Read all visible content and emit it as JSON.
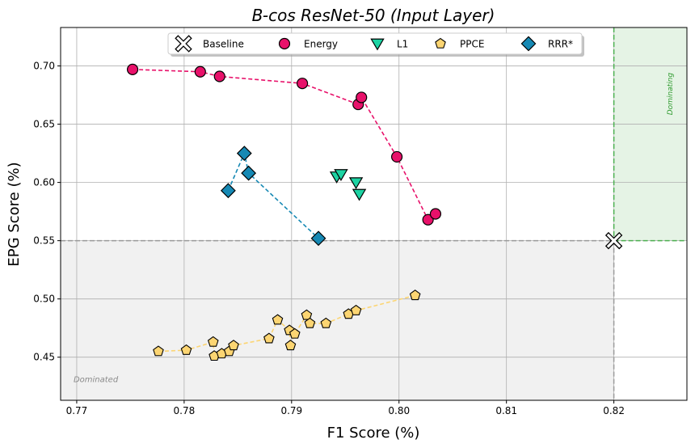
{
  "chart_data": {
    "type": "scatter",
    "title": "B-cos ResNet-50 (Input Layer)",
    "xlabel": "F1 Score (%)",
    "ylabel": "EPG Score (%)",
    "xlim": [
      0.7685,
      0.8268
    ],
    "ylim": [
      0.413,
      0.733
    ],
    "xticks": [
      0.77,
      0.78,
      0.79,
      0.8,
      0.81,
      0.82
    ],
    "xtick_labels": [
      "0.77",
      "0.78",
      "0.79",
      "0.80",
      "0.81",
      "0.82"
    ],
    "yticks": [
      0.45,
      0.5,
      0.55,
      0.6,
      0.65,
      0.7
    ],
    "ytick_labels": [
      "0.45",
      "0.50",
      "0.55",
      "0.60",
      "0.65",
      "0.70"
    ],
    "grid": true,
    "legend_position": "top-center",
    "series": [
      {
        "name": "Baseline",
        "marker": "x-cross",
        "color": "#ffffff",
        "edge": "#000000",
        "connected": false,
        "x": [
          0.82
        ],
        "y": [
          0.55
        ]
      },
      {
        "name": "Energy",
        "marker": "circle",
        "color": "#e8116a",
        "edge": "#000000",
        "connected": true,
        "x": [
          0.7752,
          0.7815,
          0.7833,
          0.791,
          0.7962,
          0.7965,
          0.7998,
          0.8027,
          0.8034
        ],
        "y": [
          0.697,
          0.695,
          0.691,
          0.685,
          0.667,
          0.673,
          0.622,
          0.568,
          0.573
        ]
      },
      {
        "name": "L1",
        "marker": "triangle-down",
        "color": "#1dd3a3",
        "edge": "#000000",
        "connected": false,
        "x": [
          0.7942,
          0.7946,
          0.796,
          0.7963
        ],
        "y": [
          0.605,
          0.607,
          0.6,
          0.59
        ]
      },
      {
        "name": "PPCE",
        "marker": "pentagon",
        "color": "#fcd572",
        "edge": "#000000",
        "connected": true,
        "x": [
          0.7776,
          0.7802,
          0.7827,
          0.7828,
          0.7835,
          0.7842,
          0.7846,
          0.7879,
          0.7887,
          0.7898,
          0.7899,
          0.7903,
          0.7914,
          0.7917,
          0.7932,
          0.7953,
          0.796,
          0.8015
        ],
        "y": [
          0.455,
          0.456,
          0.463,
          0.451,
          0.453,
          0.455,
          0.46,
          0.466,
          0.482,
          0.473,
          0.46,
          0.47,
          0.486,
          0.479,
          0.479,
          0.487,
          0.49,
          0.503
        ]
      },
      {
        "name": "RRR*",
        "marker": "diamond",
        "color": "#1689b4",
        "edge": "#000000",
        "connected": true,
        "x": [
          0.7841,
          0.7856,
          0.786,
          0.7925
        ],
        "y": [
          0.593,
          0.625,
          0.608,
          0.552
        ]
      }
    ],
    "regions": [
      {
        "label": "Dominating",
        "color": "#2ca02c",
        "x_range": [
          0.82,
          0.8268
        ],
        "y_range": [
          0.55,
          0.733
        ]
      },
      {
        "label": "Dominated",
        "color": "#999999",
        "x_range": [
          0.7685,
          0.82
        ],
        "y_range": [
          0.413,
          0.55
        ]
      }
    ]
  }
}
